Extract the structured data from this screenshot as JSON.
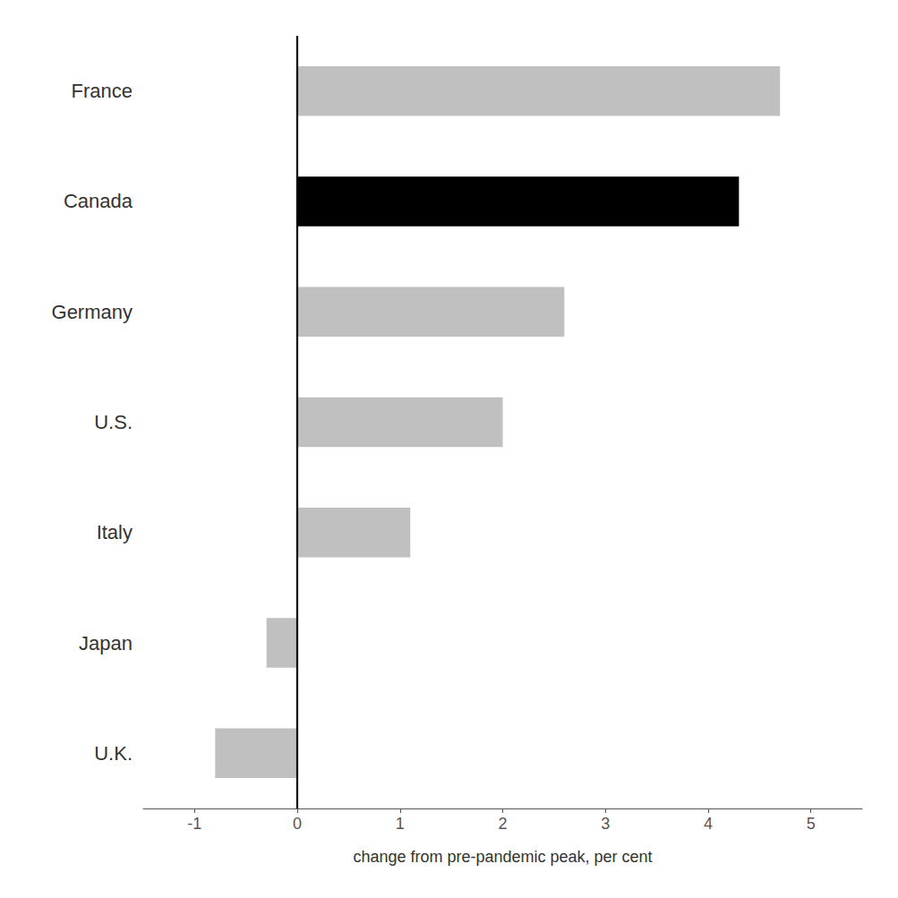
{
  "chart_data": {
    "type": "bar",
    "orientation": "horizontal",
    "categories": [
      "France",
      "Canada",
      "Germany",
      "U.S.",
      "Italy",
      "Japan",
      "U.K."
    ],
    "values": [
      4.7,
      4.3,
      2.6,
      2.0,
      1.1,
      -0.3,
      -0.8
    ],
    "colors": [
      "#c0c0c0",
      "#000000",
      "#c0c0c0",
      "#c0c0c0",
      "#c0c0c0",
      "#c0c0c0",
      "#c0c0c0"
    ],
    "xlabel": "change from pre-pandemic peak, per cent",
    "xlim": [
      -1.5,
      5.5
    ],
    "xticks": [
      -1,
      0,
      1,
      2,
      3,
      4,
      5
    ],
    "grid": false
  }
}
